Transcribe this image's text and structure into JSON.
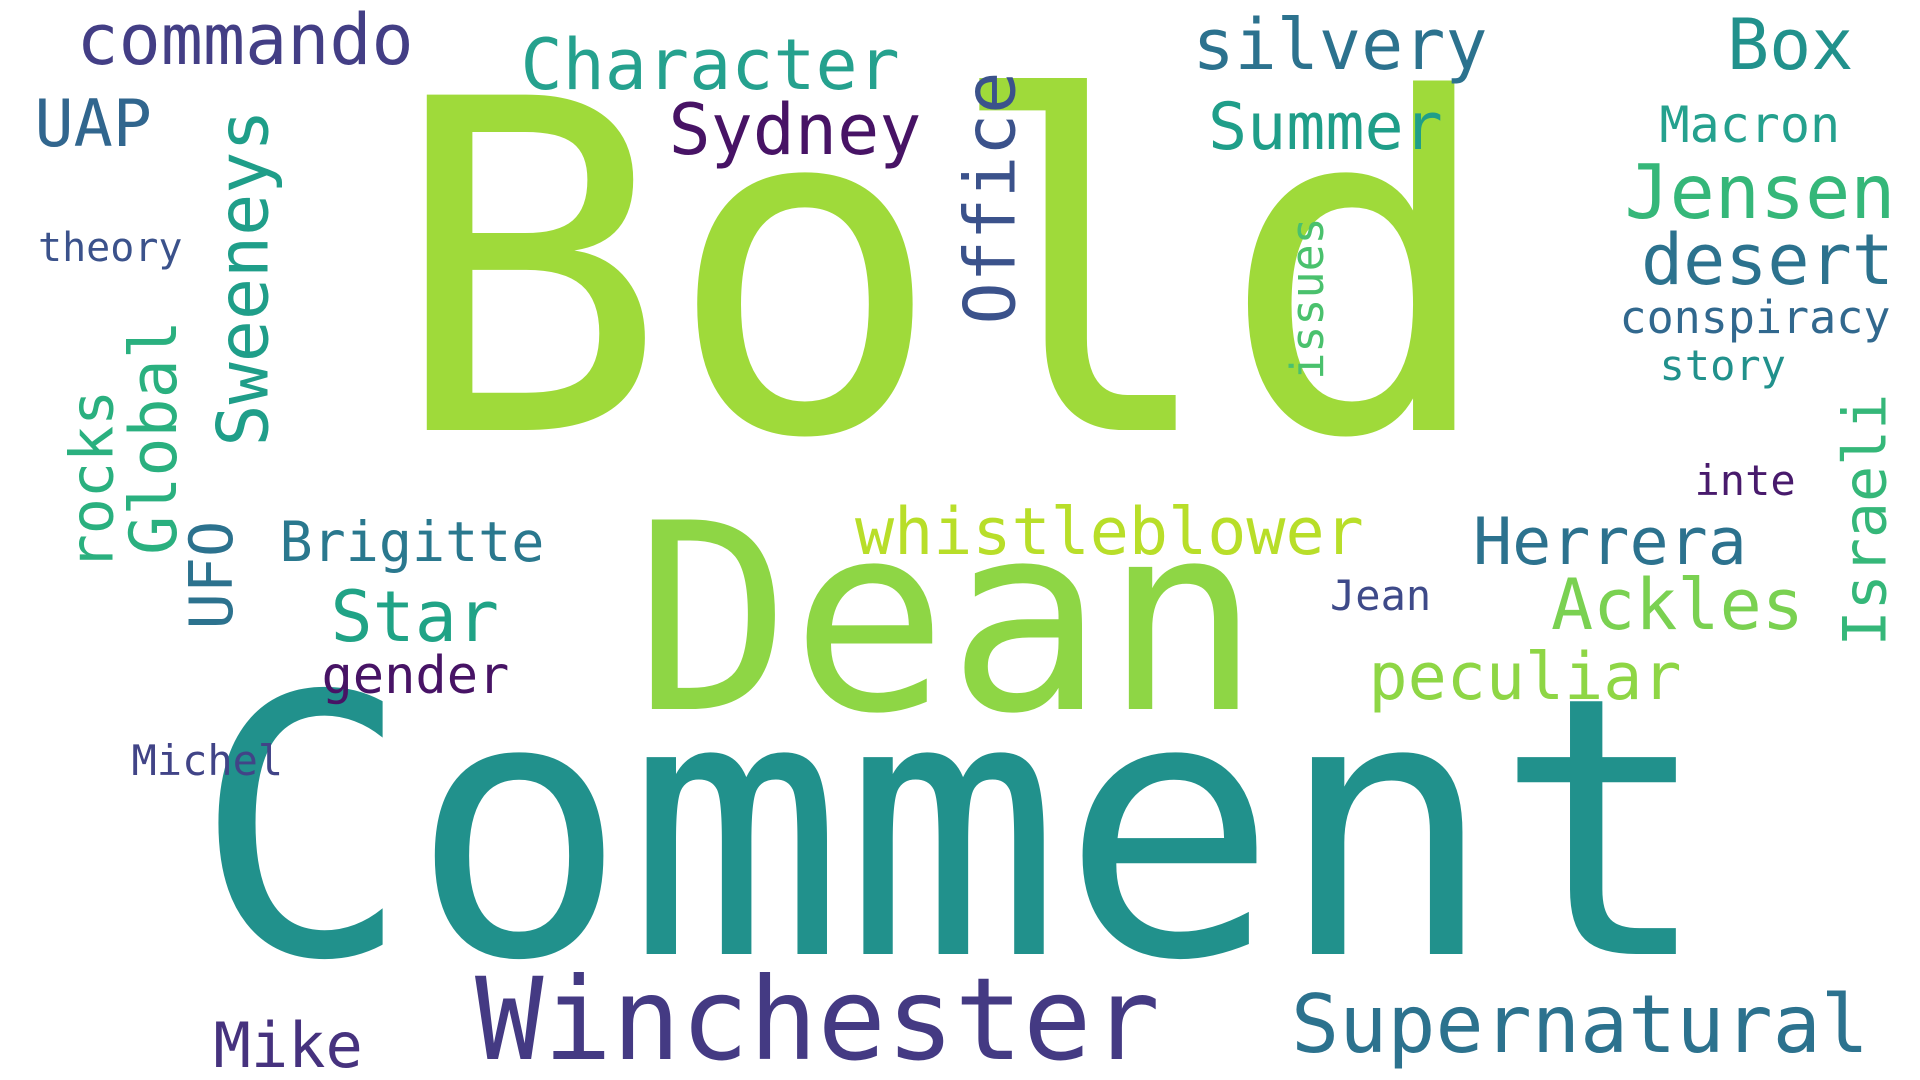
{
  "words": [
    {
      "text": "Bold",
      "color": "#9fda3a",
      "vertical": false
    },
    {
      "text": "Comment",
      "color": "#21918c",
      "vertical": false
    },
    {
      "text": "Dean",
      "color": "#8ed645",
      "vertical": false
    },
    {
      "text": "Winchester",
      "color": "#443a83",
      "vertical": false
    },
    {
      "text": "Supernatural",
      "color": "#2c728e",
      "vertical": false
    },
    {
      "text": "Character",
      "color": "#25a18e",
      "vertical": false
    },
    {
      "text": "commando",
      "color": "#433e85",
      "vertical": false
    },
    {
      "text": "silvery",
      "color": "#2c728e",
      "vertical": false
    },
    {
      "text": "Box",
      "color": "#21918c",
      "vertical": false
    },
    {
      "text": "UAP",
      "color": "#31668e",
      "vertical": false
    },
    {
      "text": "Sydney",
      "color": "#471365",
      "vertical": false
    },
    {
      "text": "Summer",
      "color": "#1f9e89",
      "vertical": false
    },
    {
      "text": "Macron",
      "color": "#25a18e",
      "vertical": false
    },
    {
      "text": "Jensen",
      "color": "#35b779",
      "vertical": false
    },
    {
      "text": "desert",
      "color": "#2c728e",
      "vertical": false
    },
    {
      "text": "conspiracy",
      "color": "#31688e",
      "vertical": false
    },
    {
      "text": "story",
      "color": "#21918c",
      "vertical": false
    },
    {
      "text": "theory",
      "color": "#3b528b",
      "vertical": false
    },
    {
      "text": "inte",
      "color": "#481a6c",
      "vertical": false
    },
    {
      "text": "whistleblower",
      "color": "#b8de29",
      "vertical": false
    },
    {
      "text": "Herrera",
      "color": "#2c728e",
      "vertical": false
    },
    {
      "text": "Brigitte",
      "color": "#2a788e",
      "vertical": false
    },
    {
      "text": "Star",
      "color": "#20a386",
      "vertical": false
    },
    {
      "text": "Ackles",
      "color": "#7ad151",
      "vertical": false
    },
    {
      "text": "Jean",
      "color": "#3e4a89",
      "vertical": false
    },
    {
      "text": "peculiar",
      "color": "#8ed645",
      "vertical": false
    },
    {
      "text": "gender",
      "color": "#471365",
      "vertical": false
    },
    {
      "text": "Michel",
      "color": "#414487",
      "vertical": false
    },
    {
      "text": "Mike",
      "color": "#46327e",
      "vertical": false
    },
    {
      "text": "Office",
      "color": "#3b528b",
      "vertical": true
    },
    {
      "text": "Sweeneys",
      "color": "#1f9e89",
      "vertical": true
    },
    {
      "text": "Global",
      "color": "#2ab07f",
      "vertical": true
    },
    {
      "text": "rocks",
      "color": "#2ab07f",
      "vertical": true
    },
    {
      "text": "UFO",
      "color": "#2c728e",
      "vertical": true
    },
    {
      "text": "issues",
      "color": "#4ac16d",
      "vertical": true
    },
    {
      "text": "Israeli",
      "color": "#35b779",
      "vertical": true
    }
  ]
}
